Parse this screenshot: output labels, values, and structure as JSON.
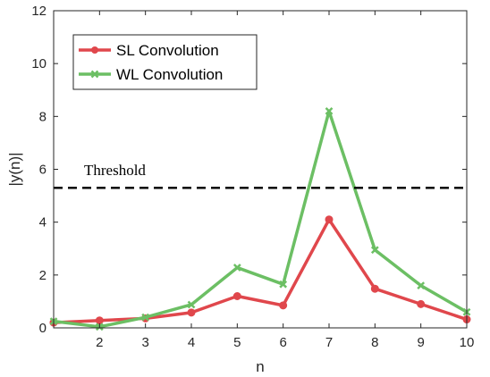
{
  "chart_data": {
    "type": "line",
    "xlabel": "n",
    "ylabel": "|y(n)|",
    "xlim": [
      1,
      10
    ],
    "ylim": [
      0,
      12
    ],
    "xticks": [
      2,
      3,
      4,
      5,
      6,
      7,
      8,
      9,
      10
    ],
    "yticks": [
      0,
      2,
      4,
      6,
      8,
      10,
      12
    ],
    "grid": false,
    "legend_position": "top-left",
    "x": [
      1,
      2,
      3,
      4,
      5,
      6,
      7,
      8,
      9,
      10
    ],
    "series": [
      {
        "name": "SL  Convolution",
        "color": "#e0474c",
        "marker": "circle",
        "values": [
          0.2,
          0.28,
          0.36,
          0.58,
          1.2,
          0.85,
          4.1,
          1.48,
          0.9,
          0.32
        ]
      },
      {
        "name": "WL Convolution",
        "color": "#6cbf64",
        "marker": "x",
        "values": [
          0.25,
          0.04,
          0.4,
          0.88,
          2.28,
          1.65,
          8.2,
          2.95,
          1.6,
          0.6
        ]
      }
    ],
    "threshold": {
      "value": 5.3,
      "label": "Threshold",
      "color": "#000000",
      "style": "dashed"
    }
  }
}
